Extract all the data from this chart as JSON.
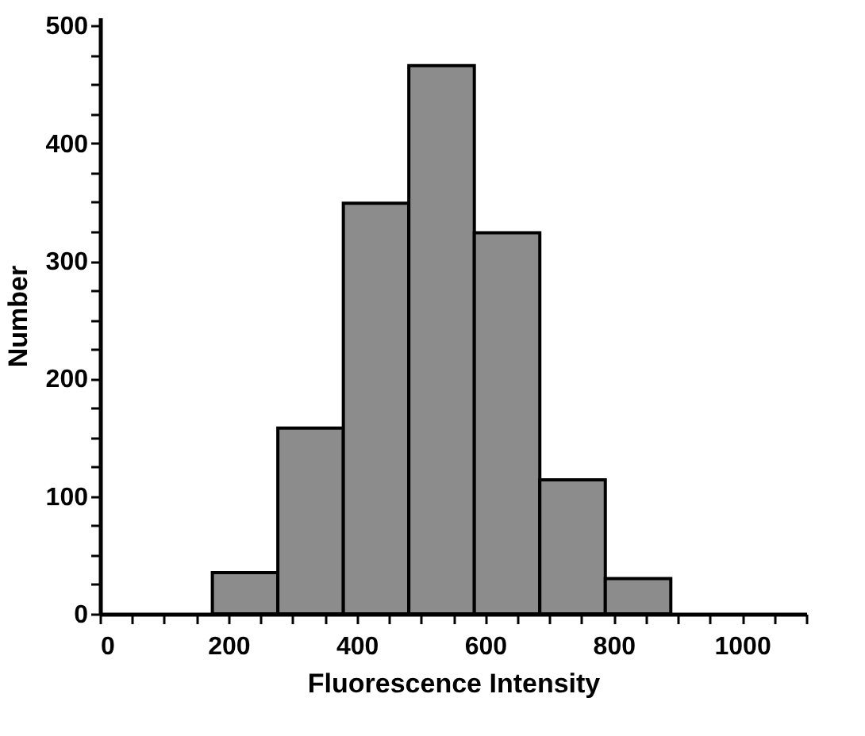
{
  "chart_data": {
    "type": "histogram",
    "xlabel": "Fluorescence Intensity",
    "ylabel": "Number",
    "bins": [
      175,
      277,
      379,
      481,
      583,
      685,
      787,
      889
    ],
    "values": [
      35,
      158,
      349,
      466,
      324,
      114,
      30
    ],
    "color": "#8c8c8c",
    "xlim": [
      0,
      1100
    ],
    "ylim": [
      0,
      507
    ],
    "xticks": [
      0,
      {
        "value": 50,
        "label": null
      },
      200,
      {
        "value": 100,
        "label": null
      },
      {
        "value": 150,
        "label": null
      },
      {
        "value": 250,
        "label": null
      },
      {
        "value": 300,
        "label": null
      },
      {
        "value": 350,
        "label": null
      },
      400,
      {
        "value": 450,
        "label": null
      },
      {
        "value": 500,
        "label": null
      },
      {
        "value": 550,
        "label": null
      },
      600,
      {
        "value": 650,
        "label": null
      },
      {
        "value": 700,
        "label": null
      },
      {
        "value": 750,
        "label": null
      },
      800,
      {
        "value": 850,
        "label": null
      },
      {
        "value": 900,
        "label": null
      },
      {
        "value": 950,
        "label": null
      },
      1000,
      {
        "value": 1050,
        "label": null
      },
      {
        "value": 1100,
        "label": null
      }
    ],
    "yticks": [
      0,
      {
        "value": 25,
        "label": null
      },
      {
        "value": 50,
        "label": null
      },
      {
        "value": 75,
        "label": null
      },
      100,
      {
        "value": 125,
        "label": null
      },
      {
        "value": 150,
        "label": null
      },
      {
        "value": 175,
        "label": null
      },
      200,
      {
        "value": 225,
        "label": null
      },
      {
        "value": 250,
        "label": null
      },
      {
        "value": 275,
        "label": null
      },
      300,
      {
        "value": 325,
        "label": null
      },
      {
        "value": 350,
        "label": null
      },
      {
        "value": 375,
        "label": null
      },
      400,
      {
        "value": 425,
        "label": null
      },
      {
        "value": 450,
        "label": null
      },
      {
        "value": 475,
        "label": null
      },
      500
    ],
    "grid": false
  }
}
